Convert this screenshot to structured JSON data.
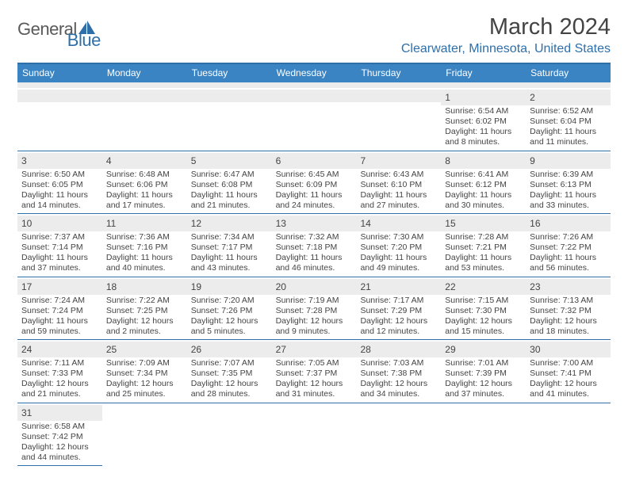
{
  "logo": {
    "text1": "General",
    "text2": "Blue",
    "shape_color": "#2f6fa8"
  },
  "header": {
    "title": "March 2024",
    "location": "Clearwater, Minnesota, United States"
  },
  "colors": {
    "header_bar": "#3b84c4",
    "accent_line": "#2f6fa8",
    "daynum_bg": "#ececec",
    "text": "#444444",
    "bg": "#ffffff"
  },
  "fonts": {
    "base_family": "Arial",
    "title_pt": 29,
    "location_pt": 16,
    "dow_pt": 12,
    "daynum_pt": 12,
    "body_pt": 10.5
  },
  "layout": {
    "columns": 7,
    "rows": 6,
    "cell_border_bottom": "1px solid #2f6fa8"
  },
  "dow": [
    "Sunday",
    "Monday",
    "Tuesday",
    "Wednesday",
    "Thursday",
    "Friday",
    "Saturday"
  ],
  "weeks": [
    [
      null,
      null,
      null,
      null,
      null,
      {
        "n": "1",
        "sr": "Sunrise: 6:54 AM",
        "ss": "Sunset: 6:02 PM",
        "dl": "Daylight: 11 hours and 8 minutes."
      },
      {
        "n": "2",
        "sr": "Sunrise: 6:52 AM",
        "ss": "Sunset: 6:04 PM",
        "dl": "Daylight: 11 hours and 11 minutes."
      }
    ],
    [
      {
        "n": "3",
        "sr": "Sunrise: 6:50 AM",
        "ss": "Sunset: 6:05 PM",
        "dl": "Daylight: 11 hours and 14 minutes."
      },
      {
        "n": "4",
        "sr": "Sunrise: 6:48 AM",
        "ss": "Sunset: 6:06 PM",
        "dl": "Daylight: 11 hours and 17 minutes."
      },
      {
        "n": "5",
        "sr": "Sunrise: 6:47 AM",
        "ss": "Sunset: 6:08 PM",
        "dl": "Daylight: 11 hours and 21 minutes."
      },
      {
        "n": "6",
        "sr": "Sunrise: 6:45 AM",
        "ss": "Sunset: 6:09 PM",
        "dl": "Daylight: 11 hours and 24 minutes."
      },
      {
        "n": "7",
        "sr": "Sunrise: 6:43 AM",
        "ss": "Sunset: 6:10 PM",
        "dl": "Daylight: 11 hours and 27 minutes."
      },
      {
        "n": "8",
        "sr": "Sunrise: 6:41 AM",
        "ss": "Sunset: 6:12 PM",
        "dl": "Daylight: 11 hours and 30 minutes."
      },
      {
        "n": "9",
        "sr": "Sunrise: 6:39 AM",
        "ss": "Sunset: 6:13 PM",
        "dl": "Daylight: 11 hours and 33 minutes."
      }
    ],
    [
      {
        "n": "10",
        "sr": "Sunrise: 7:37 AM",
        "ss": "Sunset: 7:14 PM",
        "dl": "Daylight: 11 hours and 37 minutes."
      },
      {
        "n": "11",
        "sr": "Sunrise: 7:36 AM",
        "ss": "Sunset: 7:16 PM",
        "dl": "Daylight: 11 hours and 40 minutes."
      },
      {
        "n": "12",
        "sr": "Sunrise: 7:34 AM",
        "ss": "Sunset: 7:17 PM",
        "dl": "Daylight: 11 hours and 43 minutes."
      },
      {
        "n": "13",
        "sr": "Sunrise: 7:32 AM",
        "ss": "Sunset: 7:18 PM",
        "dl": "Daylight: 11 hours and 46 minutes."
      },
      {
        "n": "14",
        "sr": "Sunrise: 7:30 AM",
        "ss": "Sunset: 7:20 PM",
        "dl": "Daylight: 11 hours and 49 minutes."
      },
      {
        "n": "15",
        "sr": "Sunrise: 7:28 AM",
        "ss": "Sunset: 7:21 PM",
        "dl": "Daylight: 11 hours and 53 minutes."
      },
      {
        "n": "16",
        "sr": "Sunrise: 7:26 AM",
        "ss": "Sunset: 7:22 PM",
        "dl": "Daylight: 11 hours and 56 minutes."
      }
    ],
    [
      {
        "n": "17",
        "sr": "Sunrise: 7:24 AM",
        "ss": "Sunset: 7:24 PM",
        "dl": "Daylight: 11 hours and 59 minutes."
      },
      {
        "n": "18",
        "sr": "Sunrise: 7:22 AM",
        "ss": "Sunset: 7:25 PM",
        "dl": "Daylight: 12 hours and 2 minutes."
      },
      {
        "n": "19",
        "sr": "Sunrise: 7:20 AM",
        "ss": "Sunset: 7:26 PM",
        "dl": "Daylight: 12 hours and 5 minutes."
      },
      {
        "n": "20",
        "sr": "Sunrise: 7:19 AM",
        "ss": "Sunset: 7:28 PM",
        "dl": "Daylight: 12 hours and 9 minutes."
      },
      {
        "n": "21",
        "sr": "Sunrise: 7:17 AM",
        "ss": "Sunset: 7:29 PM",
        "dl": "Daylight: 12 hours and 12 minutes."
      },
      {
        "n": "22",
        "sr": "Sunrise: 7:15 AM",
        "ss": "Sunset: 7:30 PM",
        "dl": "Daylight: 12 hours and 15 minutes."
      },
      {
        "n": "23",
        "sr": "Sunrise: 7:13 AM",
        "ss": "Sunset: 7:32 PM",
        "dl": "Daylight: 12 hours and 18 minutes."
      }
    ],
    [
      {
        "n": "24",
        "sr": "Sunrise: 7:11 AM",
        "ss": "Sunset: 7:33 PM",
        "dl": "Daylight: 12 hours and 21 minutes."
      },
      {
        "n": "25",
        "sr": "Sunrise: 7:09 AM",
        "ss": "Sunset: 7:34 PM",
        "dl": "Daylight: 12 hours and 25 minutes."
      },
      {
        "n": "26",
        "sr": "Sunrise: 7:07 AM",
        "ss": "Sunset: 7:35 PM",
        "dl": "Daylight: 12 hours and 28 minutes."
      },
      {
        "n": "27",
        "sr": "Sunrise: 7:05 AM",
        "ss": "Sunset: 7:37 PM",
        "dl": "Daylight: 12 hours and 31 minutes."
      },
      {
        "n": "28",
        "sr": "Sunrise: 7:03 AM",
        "ss": "Sunset: 7:38 PM",
        "dl": "Daylight: 12 hours and 34 minutes."
      },
      {
        "n": "29",
        "sr": "Sunrise: 7:01 AM",
        "ss": "Sunset: 7:39 PM",
        "dl": "Daylight: 12 hours and 37 minutes."
      },
      {
        "n": "30",
        "sr": "Sunrise: 7:00 AM",
        "ss": "Sunset: 7:41 PM",
        "dl": "Daylight: 12 hours and 41 minutes."
      }
    ],
    [
      {
        "n": "31",
        "sr": "Sunrise: 6:58 AM",
        "ss": "Sunset: 7:42 PM",
        "dl": "Daylight: 12 hours and 44 minutes."
      },
      null,
      null,
      null,
      null,
      null,
      null
    ]
  ]
}
